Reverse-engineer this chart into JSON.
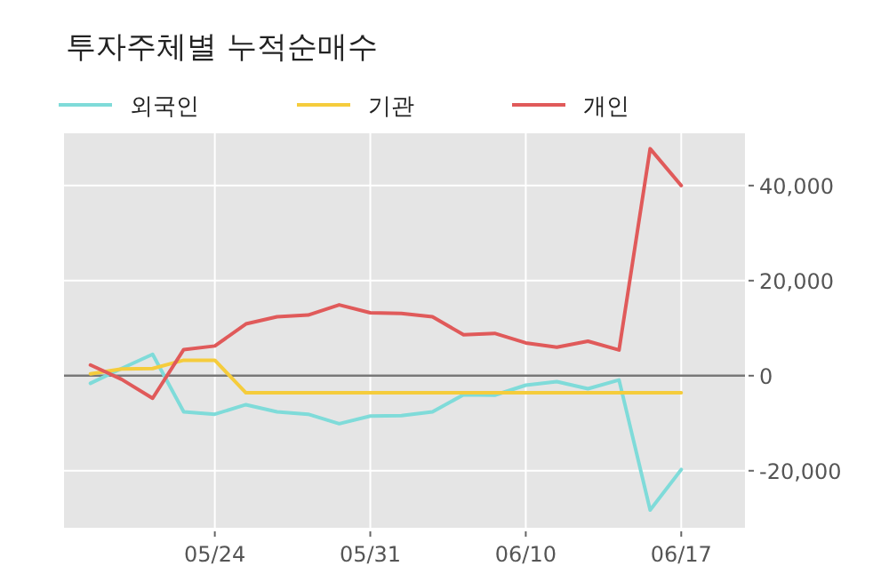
{
  "chart_data": {
    "type": "line",
    "title": "투자주체별 누적순매수",
    "categories": [
      null,
      null,
      null,
      null,
      "05/24",
      null,
      null,
      null,
      null,
      "05/31",
      null,
      null,
      null,
      null,
      "06/10",
      null,
      null,
      null,
      null,
      "06/17"
    ],
    "series": [
      {
        "name": "외국인",
        "color": "#7fdbd9",
        "values": [
          -1600,
          1500,
          4500,
          -7600,
          -8100,
          -6100,
          -7600,
          -8100,
          -10100,
          -8500,
          -8400,
          -7600,
          -4000,
          -4100,
          -2000,
          -1250,
          -2750,
          -900,
          -28250,
          -19750
        ]
      },
      {
        "name": "기관",
        "color": "#f5cc3c",
        "values": [
          400,
          1400,
          1500,
          3250,
          3250,
          -3600,
          -3600,
          -3600,
          -3600,
          -3600,
          -3600,
          -3600,
          -3600,
          -3600,
          -3600,
          -3600,
          -3600,
          -3600,
          -3600,
          -3600
        ]
      },
      {
        "name": "개인",
        "color": "#e05a5a",
        "values": [
          2250,
          -750,
          -4750,
          5500,
          6250,
          10900,
          12400,
          12750,
          14900,
          13250,
          13100,
          12400,
          8600,
          8900,
          6900,
          6000,
          7250,
          5400,
          47750,
          40000
        ]
      }
    ],
    "ylim": [
      -32000,
      51000
    ],
    "yticks": [
      {
        "value": -20000,
        "label": "-20,000"
      },
      {
        "value": 0,
        "label": "0"
      },
      {
        "value": 20000,
        "label": "20,000"
      },
      {
        "value": 40000,
        "label": "40,000"
      }
    ],
    "ref_lines": [
      {
        "axis": "y",
        "value": 0,
        "color": "#777777"
      }
    ],
    "grid": true,
    "legend": "top left"
  }
}
